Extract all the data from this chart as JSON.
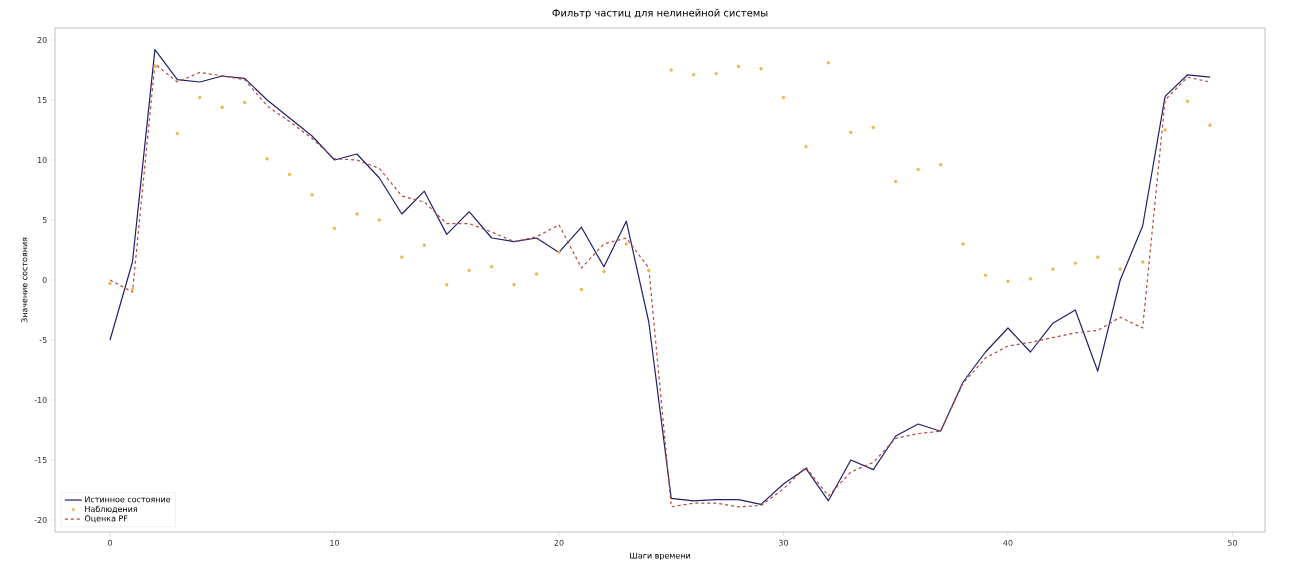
{
  "chart_data": {
    "type": "line",
    "title": "Фильтр частиц для нелинейной системы",
    "xlabel": "Шаги времени",
    "ylabel": "Значение состояния",
    "x": [
      0,
      1,
      2,
      3,
      4,
      5,
      6,
      7,
      8,
      9,
      10,
      11,
      12,
      13,
      14,
      15,
      16,
      17,
      18,
      19,
      20,
      21,
      22,
      23,
      24,
      25,
      26,
      27,
      28,
      29,
      30,
      31,
      32,
      33,
      34,
      35,
      36,
      37,
      38,
      39,
      40,
      41,
      42,
      43,
      44,
      45,
      46,
      47,
      48,
      49
    ],
    "series": [
      {
        "name": "Истинное состояние",
        "color": "#1f1f6e",
        "line_style": "solid",
        "marker": "none",
        "values": [
          -5,
          1.5,
          19.2,
          16.7,
          16.5,
          17,
          16.8,
          15,
          13.5,
          12,
          10,
          10.5,
          8.5,
          5.5,
          7.4,
          3.8,
          5.7,
          3.5,
          3.2,
          3.5,
          2.3,
          4.4,
          1.1,
          4.9,
          -3.5,
          -18.2,
          -18.4,
          -18.3,
          -18.3,
          -18.7,
          -17,
          -15.7,
          -18.4,
          -15,
          -15.8,
          -13,
          -12,
          -12.6,
          -8.5,
          -6,
          -4,
          -6,
          -3.6,
          -2.5,
          -7.6,
          0,
          4.5,
          15.3,
          17.1,
          16.9
        ]
      },
      {
        "name": "Наблюдения",
        "type": "scatter",
        "color": "#e8b84a",
        "marker": "circle",
        "values": [
          -0.3,
          -0.8,
          17.8,
          12.2,
          15.2,
          14.4,
          14.8,
          10.1,
          8.8,
          7.1,
          4.3,
          5.5,
          5.0,
          1.9,
          2.9,
          -0.4,
          0.8,
          1.1,
          -0.4,
          0.5,
          2.3,
          -0.8,
          0.7,
          3,
          0.8,
          17.5,
          17.1,
          17.2,
          17.8,
          17.6,
          15.2,
          11.1,
          18.1,
          12.3,
          12.7,
          8.2,
          9.2,
          9.6,
          3,
          0.4,
          -0.1,
          0.1,
          0.9,
          1.4,
          1.9,
          0.9,
          1.5,
          12.5,
          14.9,
          12.9
        ]
      },
      {
        "name": "Оценка PF",
        "color": "#b8453a",
        "line_style": "dashed",
        "marker": "none",
        "values": [
          0,
          -1,
          18,
          16.5,
          17.3,
          17,
          16.7,
          14.5,
          13.2,
          11.8,
          10.1,
          10,
          9.3,
          7,
          6.5,
          4.7,
          4.7,
          4,
          3.2,
          3.6,
          4.6,
          1,
          3,
          3.5,
          1,
          -18.9,
          -18.6,
          -18.6,
          -18.9,
          -18.8,
          -17.4,
          -15.6,
          -18,
          -16,
          -15.2,
          -13.2,
          -12.8,
          -12.6,
          -8.6,
          -6.5,
          -5.5,
          -5.2,
          -4.8,
          -4.4,
          -4.2,
          -3.1,
          -4,
          15,
          16.9,
          16.5
        ]
      }
    ],
    "xlim": [
      -2.45,
      51.45
    ],
    "ylim": [
      -21,
      21
    ],
    "xticks": [
      0,
      10,
      20,
      30,
      40,
      50
    ],
    "yticks": [
      -20,
      -15,
      -10,
      -5,
      0,
      5,
      10,
      15,
      20
    ],
    "grid": false,
    "legend": "bottom left"
  }
}
